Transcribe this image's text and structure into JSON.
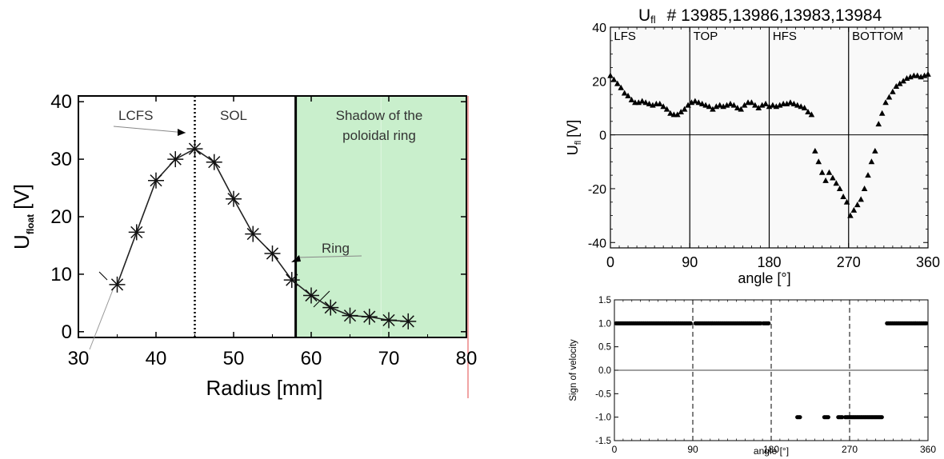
{
  "chart_data": [
    {
      "type": "line",
      "title": "",
      "xlabel": "Radius [mm]",
      "ylabel_main": "U",
      "ylabel_sub": "float",
      "ylabel_unit": "[V]",
      "xlim": [
        30,
        80
      ],
      "ylim": [
        -1,
        41
      ],
      "xticks": [
        "30",
        "40",
        "50",
        "60",
        "70",
        "80"
      ],
      "yticks": [
        "0",
        "10",
        "20",
        "30",
        "40"
      ],
      "x": [
        35,
        37.5,
        40,
        42.5,
        45,
        47.5,
        50,
        52.5,
        55,
        57.5,
        60,
        62.5,
        65,
        67.5,
        70,
        72.5
      ],
      "y": [
        8.2,
        17.3,
        26.3,
        30,
        31.8,
        29.5,
        23.1,
        17,
        13.6,
        9,
        6.3,
        4.2,
        2.8,
        2.6,
        2,
        1.8
      ],
      "marker": "asterisk",
      "vlines": [
        {
          "x": 45,
          "style": "dotted"
        },
        {
          "x": 58,
          "style": "solid"
        }
      ],
      "shaded_region": {
        "x0": 58,
        "x1": 80,
        "color": "#c9efcc"
      },
      "annotations": [
        "LCFS",
        "SOL",
        "Shadow of the",
        "poloidal ring",
        "Ring"
      ],
      "colors": {
        "shade": "#c9efcc",
        "red_line": "#e34a4a"
      }
    },
    {
      "type": "scatter",
      "title_main": "U",
      "title_sub": "fl",
      "title_rest": "# 13985,13986,13983,13984",
      "xlabel": "angle [°]",
      "ylabel_main": "U",
      "ylabel_sub": "fl",
      "ylabel_unit": "[V]",
      "xlim": [
        0,
        360
      ],
      "ylim": [
        -42,
        40
      ],
      "xticks": [
        "0",
        "90",
        "180",
        "270",
        "360"
      ],
      "yticks": [
        "-40",
        "-20",
        "0",
        "20",
        "40"
      ],
      "region_labels": [
        "LFS",
        "TOP",
        "HFS",
        "BOTTOM"
      ],
      "vlines": [
        90,
        180,
        270
      ],
      "marker": "triangle",
      "x": [
        0,
        4,
        8,
        12,
        16,
        20,
        24,
        28,
        32,
        36,
        40,
        44,
        48,
        52,
        56,
        60,
        64,
        68,
        72,
        76,
        80,
        84,
        88,
        92,
        96,
        100,
        104,
        108,
        112,
        116,
        120,
        124,
        128,
        132,
        136,
        140,
        144,
        148,
        152,
        156,
        160,
        164,
        168,
        172,
        176,
        180,
        184,
        188,
        192,
        196,
        200,
        204,
        208,
        212,
        216,
        220,
        224,
        228,
        232,
        236,
        240,
        244,
        248,
        252,
        256,
        260,
        264,
        268,
        272,
        276,
        280,
        284,
        288,
        292,
        296,
        300,
        304,
        308,
        312,
        316,
        320,
        324,
        328,
        332,
        336,
        340,
        344,
        348,
        352,
        356,
        360
      ],
      "y": [
        22,
        20.5,
        19,
        17.5,
        15.5,
        14.5,
        13,
        12,
        12,
        12.5,
        12,
        11.5,
        11,
        11.5,
        11.5,
        10.5,
        9.5,
        8,
        7.5,
        7.5,
        8.5,
        9.5,
        11,
        12,
        12.5,
        12,
        11.5,
        11,
        10.5,
        9.5,
        10.5,
        11,
        10.5,
        11,
        11.5,
        11,
        10,
        9.5,
        11,
        12,
        12,
        11,
        10,
        11,
        11.5,
        10.5,
        11,
        10.5,
        11,
        11.5,
        11.5,
        12,
        11.5,
        11,
        10.5,
        10,
        8.5,
        7.5,
        -6,
        -10,
        -14,
        -17,
        -14,
        -16,
        -18,
        -20,
        -23,
        -25,
        -30,
        -28,
        -26,
        -24,
        -20,
        -15,
        -10,
        -6,
        4,
        8,
        12,
        14,
        16,
        18,
        19,
        20,
        21,
        21.5,
        22,
        22,
        21.5,
        22,
        22.5
      ],
      "colors": {
        "panel_bg": "#f9f9f9"
      }
    },
    {
      "type": "scatter",
      "title": "",
      "xlabel": "angle [°]",
      "ylabel": "Sign of velocity",
      "xlim": [
        0,
        360
      ],
      "ylim": [
        -1.5,
        1.5
      ],
      "xticks": [
        "0",
        "90",
        "180",
        "270",
        "360"
      ],
      "yticks": [
        "1.5",
        "1.0",
        "0.5",
        "0.0",
        "-0.5",
        "-1.0",
        "-1.5"
      ],
      "vlines": [
        90,
        180,
        270
      ],
      "marker": "dot",
      "positive_segments": [
        [
          2,
          88
        ],
        [
          93,
          168
        ],
        [
          171,
          177
        ],
        [
          313,
          358
        ]
      ],
      "negative_segments": [
        [
          210,
          214
        ],
        [
          241,
          246
        ],
        [
          257,
          262
        ],
        [
          265,
          308
        ]
      ]
    }
  ]
}
